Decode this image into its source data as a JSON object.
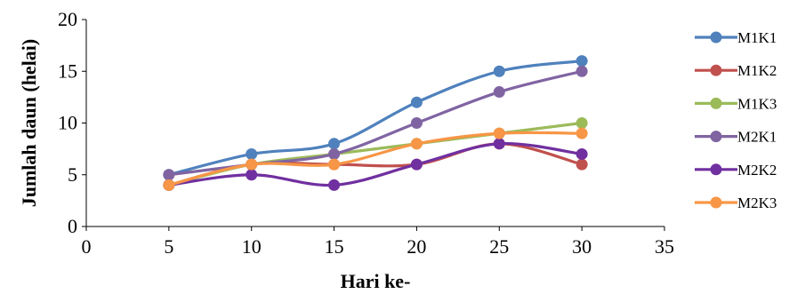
{
  "chart_data": {
    "type": "line",
    "xlabel": "Hari ke-",
    "ylabel": "Jumlah daun (helai)",
    "xlim": [
      0,
      35
    ],
    "ylim": [
      0,
      20
    ],
    "x_ticks": [
      "0",
      "5",
      "10",
      "15",
      "20",
      "25",
      "30",
      "35"
    ],
    "y_ticks": [
      "0",
      "5",
      "10",
      "15",
      "20"
    ],
    "grid": false,
    "legend_position": "right",
    "smooth_lines": true,
    "x": [
      5,
      10,
      15,
      20,
      25,
      30
    ],
    "series": [
      {
        "name": "M1K1",
        "color": "#4F81BD",
        "values": [
          5,
          7,
          8,
          12,
          15,
          16
        ]
      },
      {
        "name": "M1K2",
        "color": "#C0504D",
        "values": [
          4,
          6,
          6,
          6,
          8,
          6
        ]
      },
      {
        "name": "M1K3",
        "color": "#9BBB59",
        "values": [
          4,
          6,
          7,
          8,
          9,
          10
        ]
      },
      {
        "name": "M2K1",
        "color": "#8064A2",
        "values": [
          5,
          6,
          7,
          10,
          13,
          15
        ]
      },
      {
        "name": "M2K2",
        "color": "#7030A0",
        "values": [
          4,
          5,
          4,
          6,
          8,
          7
        ]
      },
      {
        "name": "M2K3",
        "color": "#F79646",
        "values": [
          4,
          6,
          6,
          8,
          9,
          9
        ]
      }
    ]
  }
}
